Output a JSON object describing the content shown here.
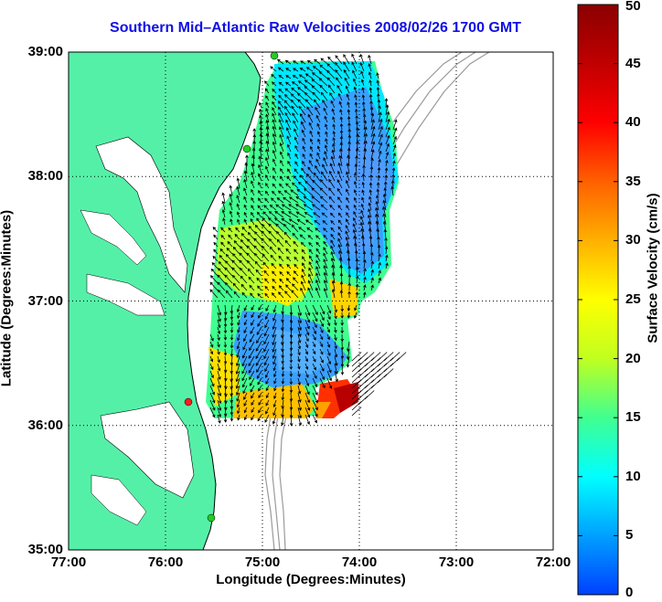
{
  "title": "Southern Mid–Atlantic Raw Velocities 2008/02/26 1700 GMT",
  "xlabel": "Longitude (Degrees:Minutes)",
  "ylabel": "Latitude (Degrees:Minutes)",
  "colorbar": {
    "label": "Surface Velocity (cm/s)",
    "ticks": [
      "0",
      "5",
      "10",
      "15",
      "20",
      "25",
      "30",
      "35",
      "40",
      "45",
      "50"
    ],
    "range": [
      0,
      50
    ],
    "colors": [
      "#0040ff",
      "#00a0ff",
      "#00ffff",
      "#40ff90",
      "#c0ff20",
      "#ffff00",
      "#ffb000",
      "#ff6000",
      "#ff0000",
      "#c00000",
      "#8b0000"
    ]
  },
  "axes": {
    "x_ticks": [
      "77:00",
      "76:00",
      "75:00",
      "74:00",
      "73:00",
      "72:00"
    ],
    "y_ticks": [
      "39:00",
      "38:00",
      "37:00",
      "36:00",
      "35:00"
    ],
    "lon_range": [
      -77,
      -72
    ],
    "lat_range": [
      35,
      39
    ],
    "grid": "dotted"
  },
  "map": {
    "land_color": "#55f0a8",
    "water_color": "#ffffff",
    "bathymetry_color": "#9a9a9a"
  },
  "stations": [
    {
      "name": "north",
      "color": "#22cc22"
    },
    {
      "name": "mid",
      "color": "#22cc22"
    },
    {
      "name": "south-red",
      "color": "#ff1a1a"
    },
    {
      "name": "south",
      "color": "#22cc22"
    }
  ]
}
